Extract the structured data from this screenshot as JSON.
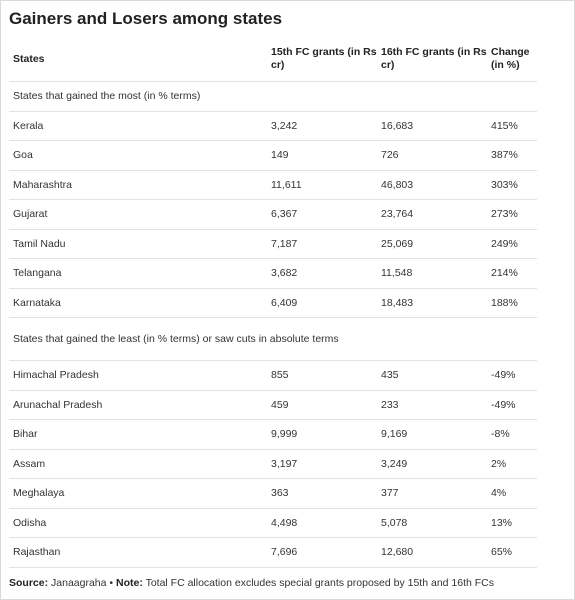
{
  "title": "Gainers and Losers among states",
  "headers": {
    "states": "States",
    "fc15": "15th FC grants (in Rs cr)",
    "fc16": "16th FC grants (in Rs cr)",
    "change": "Change (in %)"
  },
  "section_gainers": "States that gained the most (in % terms)",
  "gainers": [
    {
      "state": "Kerala",
      "fc15": "3,242",
      "fc16": "16,683",
      "change": "415%"
    },
    {
      "state": "Goa",
      "fc15": "149",
      "fc16": "726",
      "change": "387%"
    },
    {
      "state": "Maharashtra",
      "fc15": "11,611",
      "fc16": "46,803",
      "change": "303%"
    },
    {
      "state": "Gujarat",
      "fc15": "6,367",
      "fc16": "23,764",
      "change": "273%"
    },
    {
      "state": "Tamil Nadu",
      "fc15": "7,187",
      "fc16": "25,069",
      "change": "249%"
    },
    {
      "state": "Telangana",
      "fc15": "3,682",
      "fc16": "11,548",
      "change": "214%"
    },
    {
      "state": "Karnataka",
      "fc15": "6,409",
      "fc16": "18,483",
      "change": "188%"
    }
  ],
  "section_losers": "States that gained the least (in % terms) or saw cuts in absolute terms",
  "losers": [
    {
      "state": "Himachal Pradesh",
      "fc15": "855",
      "fc16": "435",
      "change": "-49%"
    },
    {
      "state": "Arunachal Pradesh",
      "fc15": "459",
      "fc16": "233",
      "change": "-49%"
    },
    {
      "state": "Bihar",
      "fc15": "9,999",
      "fc16": "9,169",
      "change": "-8%"
    },
    {
      "state": "Assam",
      "fc15": "3,197",
      "fc16": "3,249",
      "change": "2%"
    },
    {
      "state": "Meghalaya",
      "fc15": "363",
      "fc16": "377",
      "change": "4%"
    },
    {
      "state": "Odisha",
      "fc15": "4,498",
      "fc16": "5,078",
      "change": "13%"
    },
    {
      "state": "Rajasthan",
      "fc15": "7,696",
      "fc16": "12,680",
      "change": "65%"
    }
  ],
  "footer": {
    "source_label": "Source:",
    "source_text": " Janaagraha • ",
    "note_label": "Note:",
    "note_text": " Total FC allocation excludes special grants proposed by 15th and 16th FCs"
  }
}
